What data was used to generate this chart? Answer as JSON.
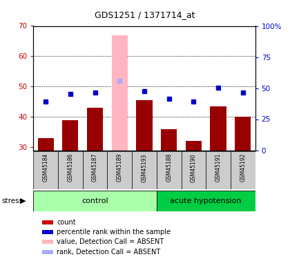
{
  "title": "GDS1251 / 1371714_at",
  "samples": [
    "GSM45184",
    "GSM45186",
    "GSM45187",
    "GSM45189",
    "GSM45193",
    "GSM45188",
    "GSM45190",
    "GSM45191",
    "GSM45192"
  ],
  "red_values": [
    33,
    39,
    43,
    67,
    45.5,
    36,
    32,
    43.5,
    40
  ],
  "blue_values": [
    45,
    47.5,
    48,
    52,
    48.5,
    46,
    45,
    49.5,
    48
  ],
  "absent_indices": [
    3
  ],
  "ylim_left": [
    29,
    70
  ],
  "ylim_right": [
    0,
    100
  ],
  "left_axis_color": "#CC0000",
  "right_axis_color": "#0000CC",
  "bar_color": "#990000",
  "absent_bar_color": "#FFB6C1",
  "dot_color": "#0000CC",
  "absent_dot_color": "#AAAAFF",
  "yticks_left": [
    30,
    40,
    50,
    60,
    70
  ],
  "yticks_right": [
    0,
    25,
    50,
    75,
    100
  ],
  "ytick_labels_right": [
    "0",
    "25",
    "50",
    "75",
    "100%"
  ],
  "control_count": 5,
  "hyp_count": 4,
  "control_color": "#AAFFAA",
  "hyp_color": "#00CC44",
  "legend_items": [
    {
      "label": "count",
      "color": "#CC0000"
    },
    {
      "label": "percentile rank within the sample",
      "color": "#0000CC"
    },
    {
      "label": "value, Detection Call = ABSENT",
      "color": "#FFB6C1"
    },
    {
      "label": "rank, Detection Call = ABSENT",
      "color": "#AAAAFF"
    }
  ]
}
